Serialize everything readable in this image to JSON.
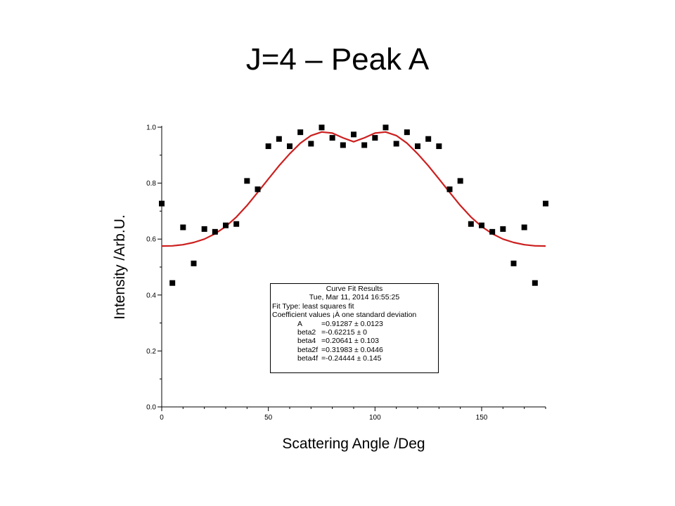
{
  "slide": {
    "title": "J=4 – Peak A"
  },
  "fit_results": {
    "heading": "Curve Fit Results",
    "date": "Tue, Mar 11, 2014 16:55:25",
    "fit_type": "Fit Type: least squares fit",
    "coef_header": "Coefficient values ¡À one standard deviation",
    "coefficients": [
      {
        "name": "A",
        "value": "=0.91287 ± 0.0123"
      },
      {
        "name": "beta2",
        "value": "=-0.62215 ± 0"
      },
      {
        "name": "beta4",
        "value": "=0.20641 ± 0.103"
      },
      {
        "name": "beta2f",
        "value": "=0.31983 ± 0.0446"
      },
      {
        "name": "beta4f",
        "value": "=-0.24444 ± 0.145"
      }
    ]
  },
  "chart_data": {
    "type": "scatter",
    "title": "",
    "xlabel": "Scattering Angle /Deg",
    "ylabel": "Intensity /Arb.U.",
    "xlim": [
      0,
      180
    ],
    "ylim": [
      0,
      1.0
    ],
    "xticks": [
      0,
      50,
      100,
      150
    ],
    "yticks": [
      0.0,
      0.2,
      0.4,
      0.6,
      0.8,
      1.0
    ],
    "ytick_labels": [
      "0.0",
      "0.2",
      "0.4",
      "0.6",
      "0.8",
      "1.0"
    ],
    "grid": false,
    "colors": {
      "points": "#000000",
      "fit": "#cc1f1f"
    },
    "series": [
      {
        "kind": "points",
        "x": [
          0,
          5,
          10,
          15,
          20,
          25,
          30,
          35,
          40,
          45,
          50,
          55,
          60,
          65,
          70,
          75,
          80,
          85,
          90,
          95,
          100,
          105,
          110,
          115,
          120,
          125,
          130,
          135,
          140,
          145,
          150,
          155,
          160,
          165,
          170,
          175,
          180
        ],
        "y": [
          0.727,
          0.443,
          0.642,
          0.513,
          0.636,
          0.626,
          0.649,
          0.654,
          0.808,
          0.778,
          0.932,
          0.958,
          0.932,
          0.982,
          0.941,
          0.999,
          0.962,
          0.936,
          0.974,
          0.936,
          0.962,
          0.999,
          0.941,
          0.982,
          0.932,
          0.958,
          0.932,
          0.778,
          0.808,
          0.654,
          0.649,
          0.626,
          0.636,
          0.513,
          0.642,
          0.443,
          0.727
        ]
      },
      {
        "kind": "fit",
        "x": [
          0,
          5,
          10,
          15,
          20,
          25,
          30,
          35,
          40,
          45,
          50,
          55,
          60,
          65,
          70,
          75,
          80,
          85,
          90,
          95,
          100,
          105,
          110,
          115,
          120,
          125,
          130,
          135,
          140,
          145,
          150,
          155,
          160,
          165,
          170,
          175,
          180
        ],
        "y": [
          0.575,
          0.576,
          0.58,
          0.588,
          0.6,
          0.619,
          0.645,
          0.679,
          0.72,
          0.767,
          0.815,
          0.862,
          0.905,
          0.943,
          0.97,
          0.983,
          0.979,
          0.962,
          0.948,
          0.962,
          0.979,
          0.983,
          0.97,
          0.943,
          0.905,
          0.862,
          0.815,
          0.767,
          0.72,
          0.679,
          0.645,
          0.619,
          0.6,
          0.588,
          0.58,
          0.576,
          0.575
        ]
      }
    ]
  }
}
